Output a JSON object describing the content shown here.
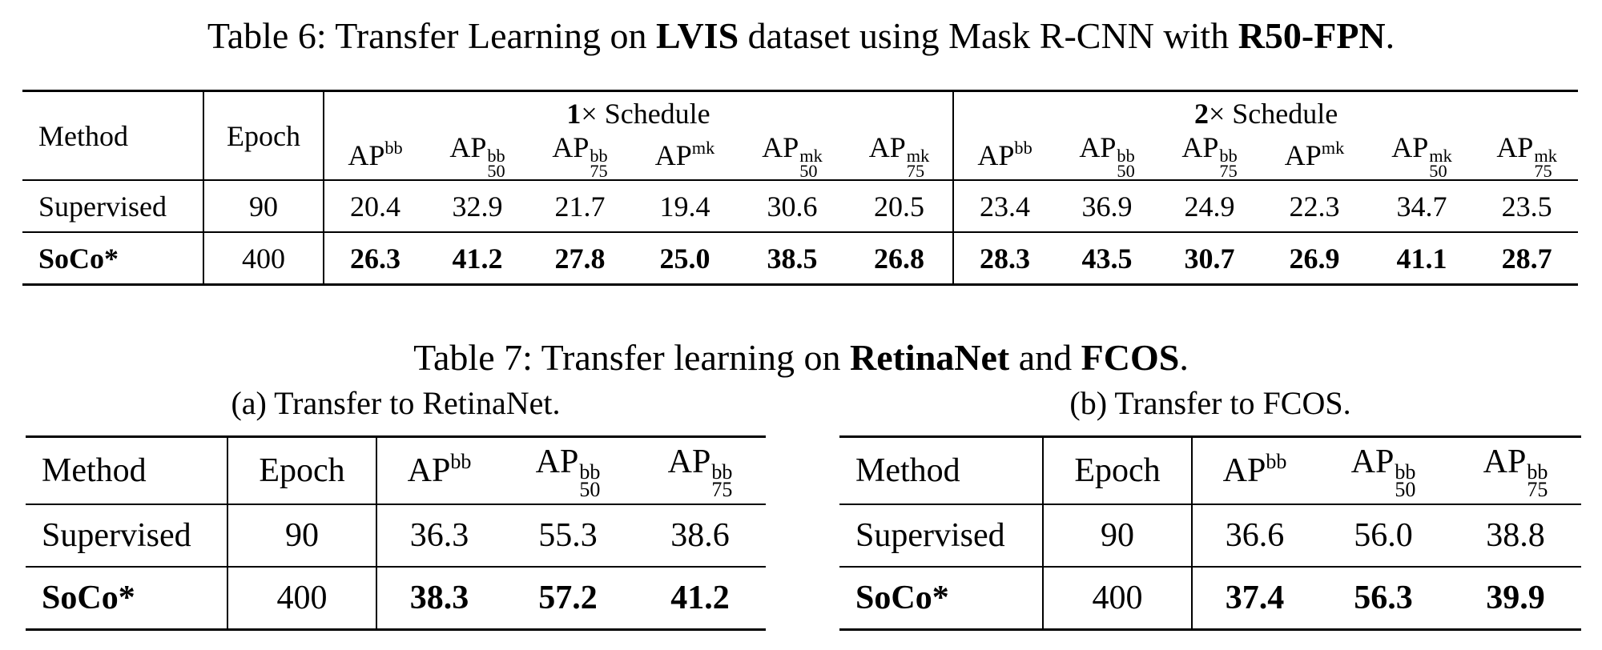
{
  "table6": {
    "caption_prefix": "Table 6: Transfer Learning on ",
    "caption_b1": "LVIS",
    "caption_mid": " dataset using Mask R-CNN with ",
    "caption_b2": "R50-FPN",
    "caption_end": ".",
    "header": {
      "method": "Method",
      "epoch": "Epoch",
      "group1_b": "1",
      "group1_rest": "× Schedule",
      "group2_b": "2",
      "group2_rest": "× Schedule",
      "ap": "AP",
      "bb": "bb",
      "mk": "mk",
      "s50": "50",
      "s75": "75"
    },
    "rows": [
      {
        "method": "Supervised",
        "epoch": "90",
        "values": [
          "20.4",
          "32.9",
          "21.7",
          "19.4",
          "30.6",
          "20.5",
          "23.4",
          "36.9",
          "24.9",
          "22.3",
          "34.7",
          "23.5"
        ]
      },
      {
        "method": "SoCo*",
        "epoch": "400",
        "values": [
          "26.3",
          "41.2",
          "27.8",
          "25.0",
          "38.5",
          "26.8",
          "28.3",
          "43.5",
          "30.7",
          "26.9",
          "41.1",
          "28.7"
        ]
      }
    ]
  },
  "table7": {
    "caption_prefix": "Table 7: Transfer learning on ",
    "caption_b1": "RetinaNet",
    "caption_mid": " and ",
    "caption_b2": "FCOS",
    "caption_end": ".",
    "sub_a": "(a) Transfer to RetinaNet.",
    "sub_b": "(b) Transfer to FCOS.",
    "a": {
      "rows": [
        {
          "method": "Supervised",
          "epoch": "90",
          "values": [
            "36.3",
            "55.3",
            "38.6"
          ]
        },
        {
          "method": "SoCo*",
          "epoch": "400",
          "values": [
            "38.3",
            "57.2",
            "41.2"
          ]
        }
      ]
    },
    "b": {
      "rows": [
        {
          "method": "Supervised",
          "epoch": "90",
          "values": [
            "36.6",
            "56.0",
            "38.8"
          ]
        },
        {
          "method": "SoCo*",
          "epoch": "400",
          "values": [
            "37.4",
            "56.3",
            "39.9"
          ]
        }
      ]
    }
  }
}
